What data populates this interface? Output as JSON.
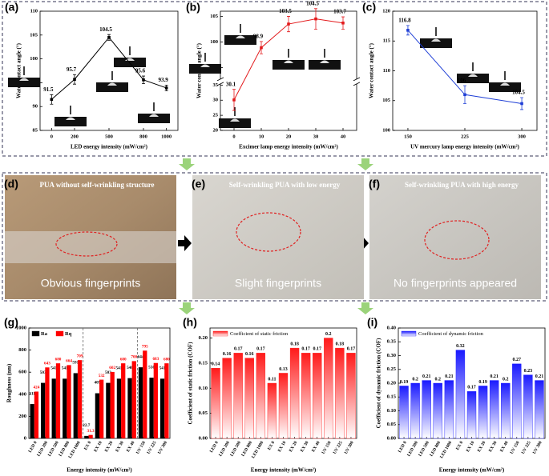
{
  "chart_data": [
    {
      "type": "line",
      "panel": "(a)",
      "x": [
        0,
        200,
        500,
        800,
        1000
      ],
      "series": [
        {
          "color": "#000000",
          "values": [
            91.5,
            95.7,
            104.5,
            95.6,
            93.9
          ],
          "errors": [
            1,
            1,
            0.6,
            0.8,
            0.6
          ]
        }
      ],
      "xlim": [
        -100,
        1100
      ],
      "xticks": [
        0,
        200,
        500,
        800,
        1000
      ],
      "ylim": [
        85,
        110
      ],
      "yticks": [
        85,
        90,
        95,
        100,
        105,
        110
      ],
      "xlabel": "LED energy intensity (mW/cm²)",
      "ylabel": "Water contact angle (°)"
    },
    {
      "type": "line",
      "panel": "(b)",
      "x": [
        0,
        10,
        20,
        30,
        40
      ],
      "series": [
        {
          "color": "#e31a1c",
          "values": [
            30.1,
            98.9,
            103.5,
            104.5,
            103.7
          ],
          "errors": [
            3.5,
            1.2,
            1.5,
            2,
            1.2
          ]
        }
      ],
      "xlim": [
        -5,
        45
      ],
      "xticks": [
        0,
        10,
        20,
        30,
        40
      ],
      "ylim": [
        20,
        106
      ],
      "ybreak": [
        35,
        93
      ],
      "yticks": [
        20,
        25,
        30,
        35,
        95,
        100,
        105
      ],
      "xlabel": "Excimer lamp energy intensity (mW/cm²)",
      "ylabel": "Water contact angle (°)"
    },
    {
      "type": "line",
      "panel": "(c)",
      "x": [
        150,
        225,
        300
      ],
      "series": [
        {
          "color": "#1f3fd6",
          "values": [
            116.8,
            106,
            104.5
          ],
          "errors": [
            0.8,
            1.5,
            1
          ]
        }
      ],
      "xlim": [
        130,
        320
      ],
      "xticks": [
        150,
        225,
        300
      ],
      "ylim": [
        100,
        120
      ],
      "yticks": [
        100,
        105,
        110,
        115,
        120
      ],
      "xlabel": "UV mercury lamp energy intensity (mW/cm²)",
      "ylabel": "Water contact angle (°)"
    },
    {
      "type": "bar",
      "panel": "(g)",
      "categories": [
        "LED 0",
        "LED 200",
        "LED 500",
        "LED 800",
        "LED 1000",
        "EX 0",
        "EX 10",
        "EX 20",
        "EX 30",
        "EX 40",
        "UV 150",
        "UV 225",
        "UV 300"
      ],
      "series": [
        {
          "name": "Ra",
          "color": "#000000",
          "values": [
            311,
            503,
            541,
            541,
            591,
            22.7,
            409,
            503,
            541,
            546,
            644,
            550,
            541
          ]
        },
        {
          "name": "Rq",
          "color": "#ff0000",
          "values": [
            424,
            643,
            680,
            664,
            709,
            31.3,
            532,
            602,
            680,
            700,
            795,
            683,
            680
          ]
        }
      ],
      "ylim": [
        0,
        1000
      ],
      "yticks": [
        0,
        200,
        400,
        600,
        800,
        1000
      ],
      "xlabel": "Energy intensity (mW/cm²)",
      "ylabel": "Roughness (nm)"
    },
    {
      "type": "bar",
      "panel": "(h)",
      "categories": [
        "LED 0",
        "LED 200",
        "LED 500",
        "LED 800",
        "LED 1000",
        "EX 0",
        "EX 10",
        "EX 20",
        "EX 30",
        "EX 40",
        "UV 150",
        "UV 225",
        "UV 300"
      ],
      "series": [
        {
          "name": "Coefficient of static friction",
          "color": "#ff1a1a",
          "values": [
            0.14,
            0.16,
            0.17,
            0.16,
            0.17,
            0.11,
            0.13,
            0.18,
            0.17,
            0.17,
            0.2,
            0.18,
            0.17
          ]
        }
      ],
      "ylim": [
        0,
        0.22
      ],
      "yticks": [
        {
          "value": 0,
          "label": "0.00"
        },
        {
          "value": 0.05,
          "label": "0.05"
        },
        {
          "value": 0.1,
          "label": "0.10"
        },
        {
          "value": 0.15,
          "label": "0.15"
        },
        {
          "value": 0.2,
          "label": "0.20"
        }
      ],
      "xlabel": "Energy intensity (mW/cm²)",
      "ylabel": "Coefficient of static friction (COF)"
    },
    {
      "type": "bar",
      "panel": "(i)",
      "categories": [
        "LED 0",
        "LED 200",
        "LED 500",
        "LED 800",
        "LED 1000",
        "EX 0",
        "EX 10",
        "EX 20",
        "EX 30",
        "EX 40",
        "UV 150",
        "UV 225",
        "UV 300"
      ],
      "series": [
        {
          "name": "Coefficient of dynamic friction",
          "color": "#1a1aff",
          "values": [
            0.19,
            0.2,
            0.21,
            0.2,
            0.21,
            0.32,
            0.17,
            0.19,
            0.21,
            0.2,
            0.27,
            0.23,
            0.21
          ]
        }
      ],
      "ylim": [
        0,
        0.4
      ],
      "yticks": [
        {
          "value": 0,
          "label": "0.00"
        },
        {
          "value": 0.05,
          "label": "0.05"
        },
        {
          "value": 0.1,
          "label": "0.10"
        },
        {
          "value": 0.15,
          "label": "0.15"
        },
        {
          "value": 0.2,
          "label": "0.20"
        },
        {
          "value": 0.25,
          "label": "0.25"
        },
        {
          "value": 0.3,
          "label": "0.30"
        },
        {
          "value": 0.35,
          "label": "0.35"
        },
        {
          "value": 0.4,
          "label": "0.40"
        }
      ],
      "xlabel": "Energy intensity (mW/cm²)",
      "ylabel": "Coefficient of dynamic friction (COF)"
    }
  ],
  "photos": [
    {
      "panel": "(d)",
      "caption": "PUA without self-wrinkling structure",
      "result": "Obvious fingerprints"
    },
    {
      "panel": "(e)",
      "caption": "Self-wrinkling PUA with low energy",
      "result": "Slight fingerprints"
    },
    {
      "panel": "(f)",
      "caption": "No fingerprints appeared",
      "result": "No fingerprints appeared",
      "caption_full": "Self-wrinkling PUA with high energy"
    }
  ]
}
